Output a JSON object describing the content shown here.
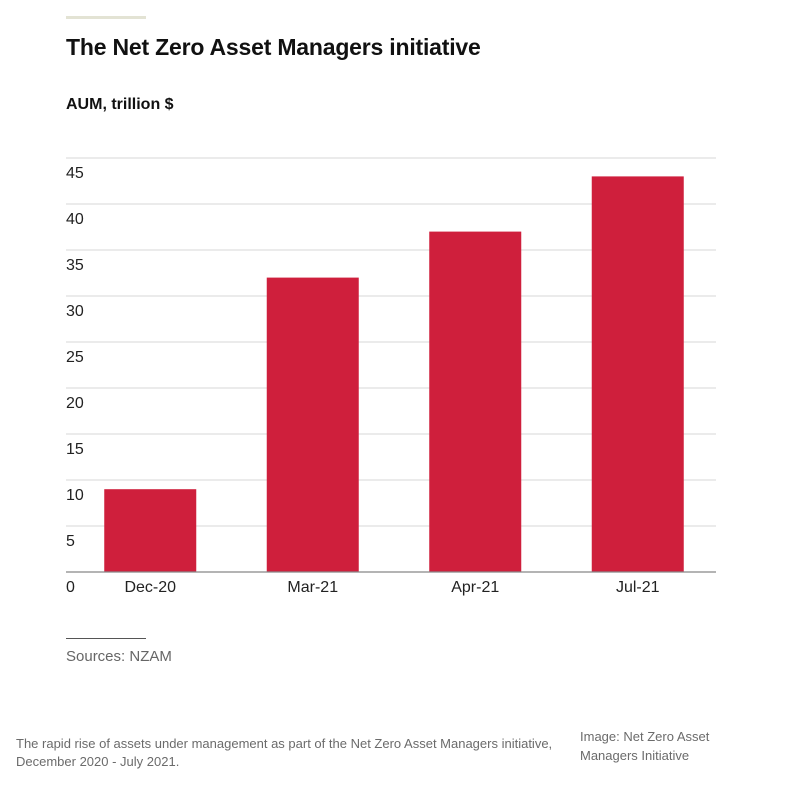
{
  "chart_data": {
    "type": "bar",
    "title": "The Net Zero Asset Managers initiative",
    "ylabel": "AUM, trillion $",
    "xlabel": "",
    "categories": [
      "Dec-20",
      "Mar-21",
      "Apr-21",
      "Jul-21"
    ],
    "values": [
      9,
      32,
      37,
      43
    ],
    "ylim": [
      0,
      45
    ],
    "yticks": [
      "0",
      "5",
      "10",
      "15",
      "20",
      "25",
      "30",
      "35",
      "40",
      "45"
    ],
    "grid": true,
    "bar_color": "#cf1f3c",
    "grid_color": "#d7d7d7",
    "axis_color": "#888888"
  },
  "source": "Sources: NZAM",
  "caption": "The rapid rise of assets under management as part of the Net Zero Asset Managers initiative, December 2020 - July 2021.",
  "credit": "Image: Net Zero Asset Managers Initiative"
}
